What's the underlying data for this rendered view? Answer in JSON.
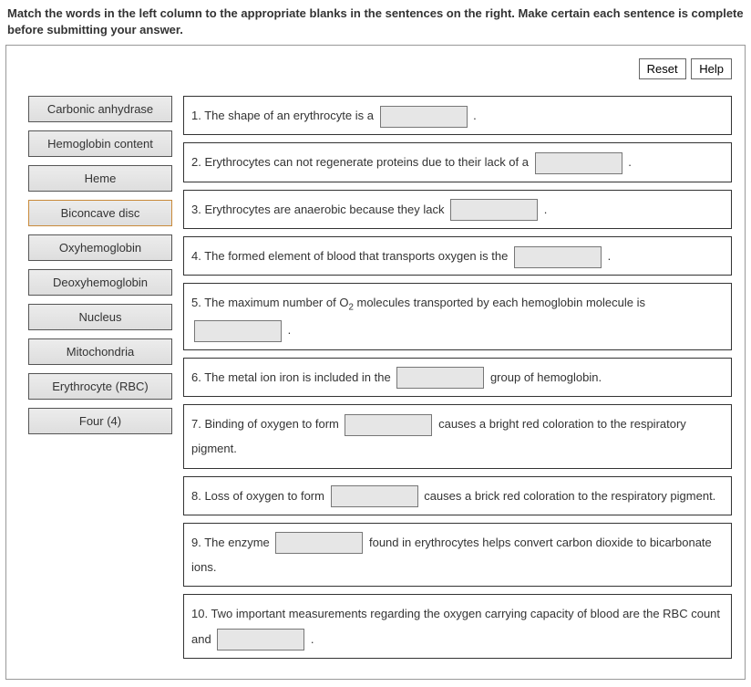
{
  "instructions": "Match the words in the left column to the appropriate blanks in the sentences on the right. Make certain each sentence is complete before submitting your answer.",
  "toolbar": {
    "reset_label": "Reset",
    "help_label": "Help"
  },
  "terms": [
    {
      "label": "Carbonic anhydrase",
      "selected": false
    },
    {
      "label": "Hemoglobin content",
      "selected": false
    },
    {
      "label": "Heme",
      "selected": false
    },
    {
      "label": "Biconcave disc",
      "selected": true
    },
    {
      "label": "Oxyhemoglobin",
      "selected": false
    },
    {
      "label": "Deoxyhemoglobin",
      "selected": false
    },
    {
      "label": "Nucleus",
      "selected": false
    },
    {
      "label": "Mitochondria",
      "selected": false
    },
    {
      "label": "Erythrocyte (RBC)",
      "selected": false
    },
    {
      "label": "Four (4)",
      "selected": false
    }
  ],
  "sentences": {
    "s1": {
      "pre": "1. The shape of an erythrocyte is a ",
      "post": " ."
    },
    "s2": {
      "pre": "2. Erythrocytes can not regenerate proteins due to their lack of a ",
      "post": " ."
    },
    "s3": {
      "pre": "3. Erythrocytes are anaerobic because they lack ",
      "post": " ."
    },
    "s4": {
      "pre": "4. The formed element of blood that transports oxygen is the ",
      "post": " ."
    },
    "s5": {
      "pre_a": "5. The maximum number of O",
      "sub": "2",
      "pre_b": " molecules transported by each hemoglobin molecule is ",
      "post": " ."
    },
    "s6": {
      "pre": "6. The metal ion iron is included in the ",
      "post": " group of hemoglobin."
    },
    "s7": {
      "pre": "7. Binding of oxygen to form ",
      "post": " causes a bright red coloration to the respiratory pigment."
    },
    "s8": {
      "pre": "8. Loss of oxygen to form ",
      "post": " causes a brick red coloration to the respiratory pigment."
    },
    "s9": {
      "pre": "9. The enzyme ",
      "post": " found in erythrocytes helps convert carbon dioxide to bicarbonate ions."
    },
    "s10": {
      "pre": "10. Two important measurements regarding the oxygen carrying capacity of blood are the RBC count and ",
      "post": " ."
    }
  },
  "colors": {
    "border": "#333333",
    "term_bg": "#e3e3e3",
    "blank_bg": "#e6e6e6",
    "selected_border": "#c98a3a"
  }
}
